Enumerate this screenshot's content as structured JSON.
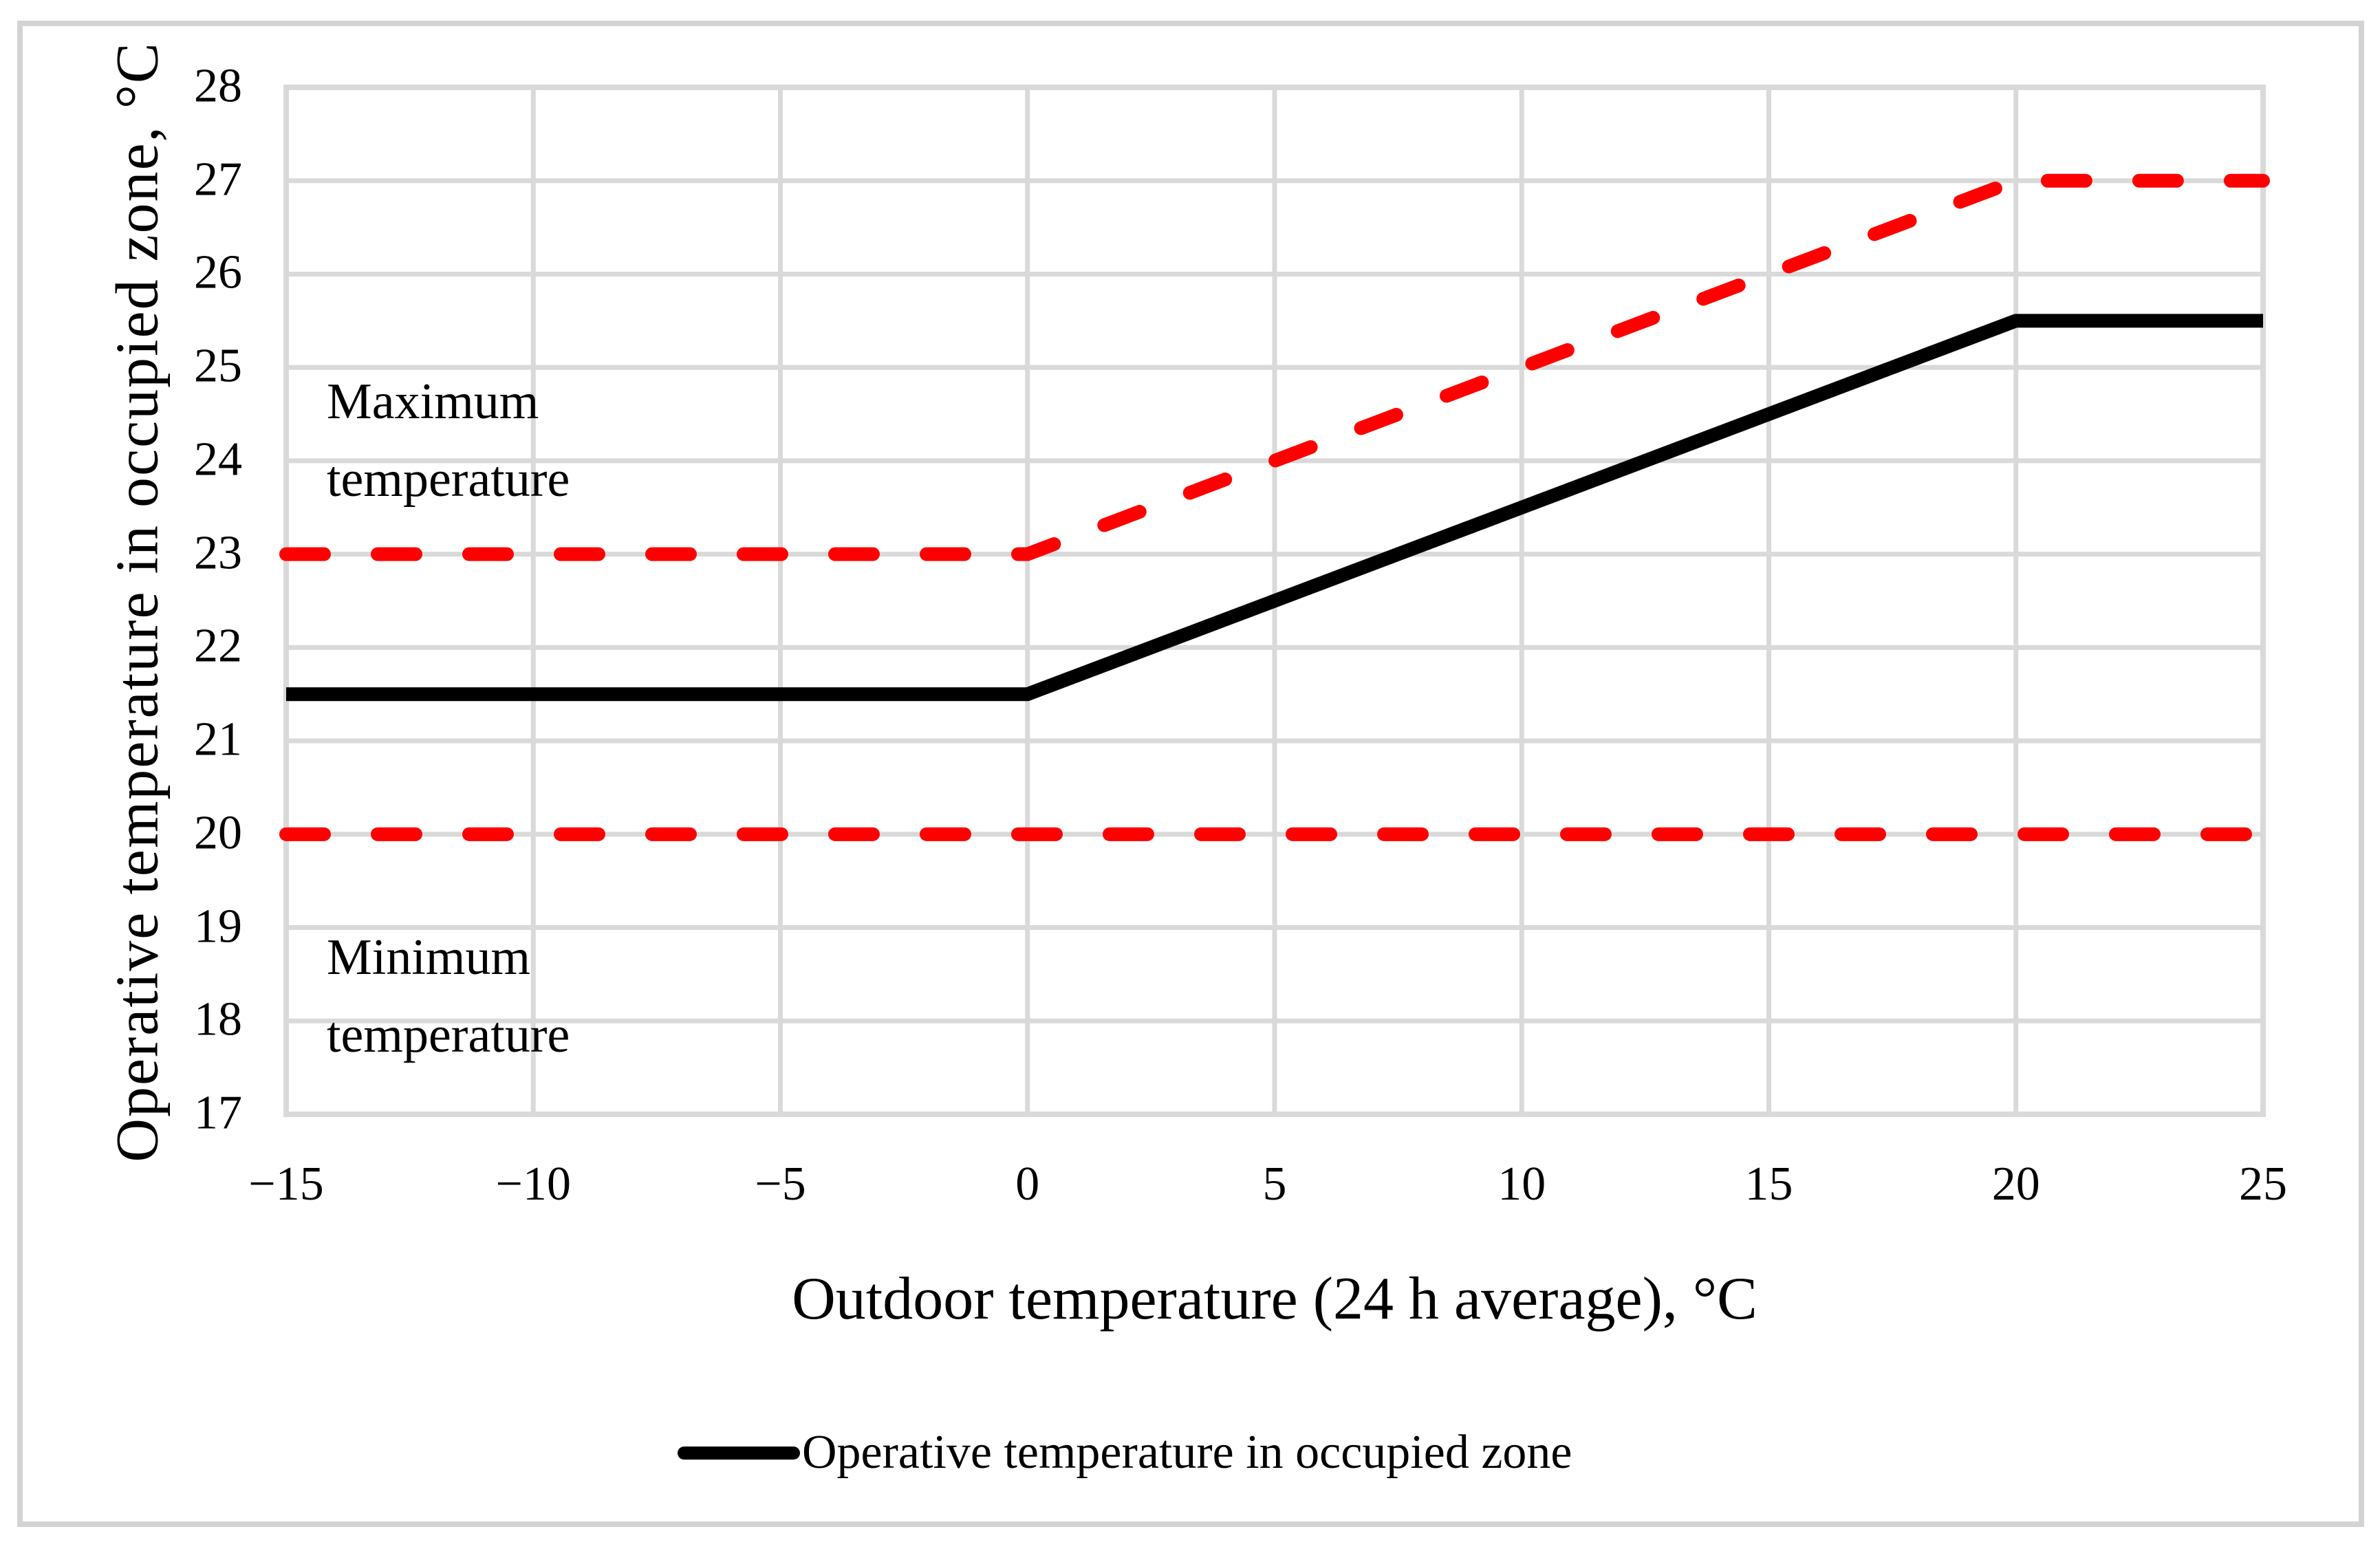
{
  "figure": {
    "background": "#ffffff",
    "border_color": "#d3d3d3"
  },
  "legend": {
    "label": "Operative temperature in occupied zone"
  },
  "annotations": {
    "max_label": {
      "line1": "Maximum",
      "line2": "temperature"
    },
    "min_label": {
      "line1": "Minimum",
      "line2": "temperature"
    }
  },
  "chart_data": {
    "type": "line",
    "title": "",
    "xlabel": "Outdoor temperature (24 h average), °C",
    "ylabel": "Operative temperature in occupied zone, °C",
    "xlim": [
      -15,
      25
    ],
    "ylim": [
      17,
      28
    ],
    "x_ticks": [
      -15,
      -10,
      -5,
      0,
      5,
      10,
      15,
      20,
      25
    ],
    "x_tick_labels": [
      "−15",
      "−10",
      "−5",
      "0",
      "5",
      "10",
      "15",
      "20",
      "25"
    ],
    "y_ticks": [
      17,
      18,
      19,
      20,
      21,
      22,
      23,
      24,
      25,
      26,
      27,
      28
    ],
    "grid": true,
    "legend_position": "bottom-center",
    "colors": {
      "grid": "#d9d9d9",
      "red": "#ff0000",
      "black": "#000000"
    },
    "series": [
      {
        "name": "Maximum temperature",
        "color": "#ff0000",
        "style": "dashed",
        "points": [
          [
            -15,
            23
          ],
          [
            0,
            23
          ],
          [
            20,
            27
          ],
          [
            25,
            27
          ]
        ]
      },
      {
        "name": "Operative temperature in occupied zone",
        "color": "#000000",
        "style": "solid",
        "points": [
          [
            -15,
            21.5
          ],
          [
            0,
            21.5
          ],
          [
            20,
            25.5
          ],
          [
            25,
            25.5
          ]
        ]
      },
      {
        "name": "Minimum temperature",
        "color": "#ff0000",
        "style": "dashed",
        "points": [
          [
            -15,
            20
          ],
          [
            25,
            20
          ]
        ]
      }
    ]
  }
}
